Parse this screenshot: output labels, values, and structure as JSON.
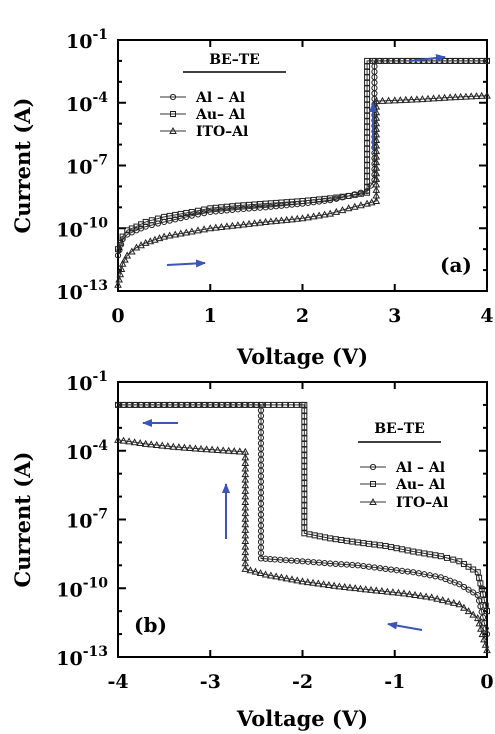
{
  "chart_data": [
    {
      "type": "line",
      "panel_label": "(a)",
      "xlabel": "Voltage (V)",
      "ylabel": "Current (A)",
      "xlim": [
        0,
        4
      ],
      "x_ticks": [
        "0",
        "1",
        "2",
        "3",
        "4"
      ],
      "ylim_exponent": [
        -13,
        -1
      ],
      "y_scale": "log",
      "y_ticks": [
        {
          "base": "10",
          "exp": "-1"
        },
        {
          "base": "10",
          "exp": "-4"
        },
        {
          "base": "10",
          "exp": "-7"
        },
        {
          "base": "10",
          "exp": "-10"
        },
        {
          "base": "10",
          "exp": "-13"
        }
      ],
      "legend": {
        "title": "BE–TE",
        "placement": "top-left"
      },
      "grid": false,
      "series": [
        {
          "name": "Al – Al",
          "marker": "circle",
          "x": [
            0,
            0.05,
            0.1,
            0.2,
            0.3,
            0.5,
            0.8,
            1.0,
            1.3,
            1.6,
            2.0,
            2.3,
            2.5,
            2.7,
            2.78,
            2.78,
            3.2,
            3.6,
            4.0
          ],
          "y": [
            5e-12,
            3e-11,
            5e-11,
            8e-11,
            1.2e-10,
            2e-10,
            4e-10,
            6e-10,
            8e-10,
            1e-09,
            1.5e-09,
            2.2e-09,
            3.5e-09,
            6e-09,
            2e-08,
            0.01,
            0.01,
            0.01,
            0.01
          ]
        },
        {
          "name": "Au– Al",
          "marker": "square",
          "x": [
            0,
            0.05,
            0.1,
            0.2,
            0.3,
            0.5,
            0.8,
            1.0,
            1.3,
            1.6,
            2.0,
            2.3,
            2.5,
            2.7,
            2.7,
            3.2,
            3.6,
            4.0
          ],
          "y": [
            1e-11,
            4e-11,
            8e-11,
            1.2e-10,
            2e-10,
            3.5e-10,
            6e-10,
            9e-10,
            1.2e-09,
            1.5e-09,
            2e-09,
            2.7e-09,
            3.5e-09,
            5e-09,
            0.01,
            0.01,
            0.01,
            0.01
          ]
        },
        {
          "name": "ITO–Al",
          "marker": "triangle",
          "x": [
            0,
            0.05,
            0.1,
            0.2,
            0.3,
            0.5,
            0.8,
            1.0,
            1.3,
            1.6,
            2.0,
            2.3,
            2.5,
            2.7,
            2.8,
            2.8,
            3.0,
            3.3,
            3.6,
            4.0
          ],
          "y": [
            2e-13,
            2e-12,
            5e-12,
            1.2e-11,
            2e-11,
            4e-11,
            7e-11,
            1e-10,
            1.4e-10,
            2e-10,
            3e-10,
            5e-10,
            9e-10,
            1.5e-09,
            2e-09,
            0.00012,
            0.00013,
            0.00015,
            0.00018,
            0.00022
          ]
        }
      ]
    },
    {
      "type": "line",
      "panel_label": "(b)",
      "xlabel": "Voltage (V)",
      "ylabel": "Current (A)",
      "xlim": [
        -4,
        0
      ],
      "x_ticks": [
        "-4",
        "-3",
        "-2",
        "-1",
        "0"
      ],
      "ylim_exponent": [
        -13,
        -1
      ],
      "y_scale": "log",
      "y_ticks": [
        {
          "base": "10",
          "exp": "-1"
        },
        {
          "base": "10",
          "exp": "-4"
        },
        {
          "base": "10",
          "exp": "-7"
        },
        {
          "base": "10",
          "exp": "-10"
        },
        {
          "base": "10",
          "exp": "-13"
        }
      ],
      "legend": {
        "title": "BE–TE",
        "placement": "top-right"
      },
      "grid": false,
      "series": [
        {
          "name": "Al – Al",
          "marker": "circle",
          "x": [
            -4,
            -3.5,
            -3.0,
            -2.5,
            -2.45,
            -2.45,
            -2.3,
            -2.0,
            -1.7,
            -1.4,
            -1.1,
            -0.8,
            -0.5,
            -0.3,
            -0.1,
            0
          ],
          "y": [
            0.01,
            0.01,
            0.01,
            0.01,
            0.01,
            2e-09,
            1.8e-09,
            1.5e-09,
            1.2e-09,
            1e-09,
            7e-10,
            5e-10,
            3e-10,
            1.5e-10,
            5e-11,
            1e-12
          ]
        },
        {
          "name": "Au– Al",
          "marker": "square",
          "x": [
            -4,
            -3.5,
            -3.0,
            -2.5,
            -2.0,
            -1.98,
            -1.98,
            -1.7,
            -1.4,
            -1.1,
            -0.8,
            -0.5,
            -0.3,
            -0.1,
            0
          ],
          "y": [
            0.01,
            0.01,
            0.01,
            0.01,
            0.01,
            0.01,
            2.5e-08,
            1.5e-08,
            1e-08,
            7e-09,
            4e-09,
            2.5e-09,
            1.5e-09,
            5e-10,
            1e-11
          ]
        },
        {
          "name": "ITO–Al",
          "marker": "triangle",
          "x": [
            -4,
            -3.7,
            -3.4,
            -3.1,
            -2.8,
            -2.62,
            -2.62,
            -2.4,
            -2.0,
            -1.6,
            -1.2,
            -0.9,
            -0.6,
            -0.3,
            -0.1,
            0
          ],
          "y": [
            0.0003,
            0.0002,
            0.00015,
            0.00012,
            0.0001,
            9e-05,
            7e-10,
            4e-10,
            2e-10,
            1.2e-10,
            8e-11,
            6e-11,
            4e-11,
            2e-11,
            5e-12,
            2e-13
          ]
        }
      ]
    }
  ]
}
